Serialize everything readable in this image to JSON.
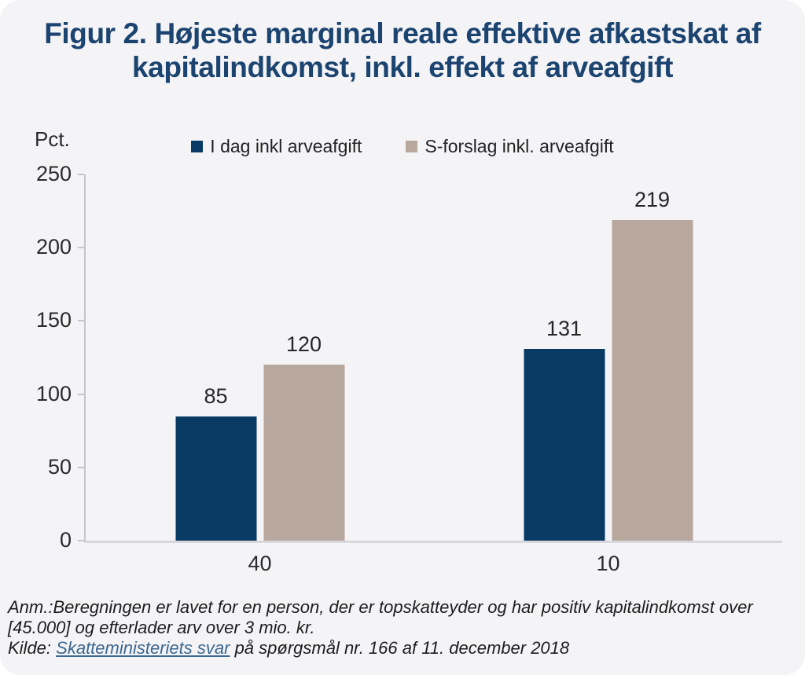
{
  "header": {
    "title_line1": "Figur 2. Højeste marginal reale effektive afkastskat af",
    "title_line2": "kapitalindkomst, inkl. effekt af arveafgift"
  },
  "colors": {
    "background": "#f4f3f6",
    "title_navy": "#1b4470",
    "bar_blue": "#083a63",
    "bar_tan": "#b8a79d",
    "axis_gray": "#c6c5cb",
    "link_blue": "#3c6790"
  },
  "chart_data": {
    "type": "bar",
    "title": "Figur 2. Højeste marginal reale effektive afkastskat af kapitalindkomst, inkl. effekt af arveafgift",
    "ylabel": "Pct.",
    "xlabel": "",
    "categories": [
      "40",
      "10"
    ],
    "series": [
      {
        "name": "I dag inkl arveafgift",
        "color": "#083a63",
        "values": [
          85,
          131
        ]
      },
      {
        "name": "S-forslag inkl. arveafgift",
        "color": "#b8a79d",
        "values": [
          120,
          219
        ]
      }
    ],
    "ylim": [
      0,
      250
    ],
    "yticks": [
      0,
      50,
      100,
      150,
      200,
      250
    ],
    "grid": false,
    "legend_position": "top-center",
    "bar_labels_shown": true
  },
  "footnote": {
    "line1": "Anm.:Beregningen er lavet for en person, der er topskatteyder og har positiv kapitalindkomst over",
    "line2": "[45.000] og efterlader arv over 3 mio. kr.",
    "source_prefix": "Kilde: ",
    "source_link": "Skatteministeriets svar",
    "source_suffix": " på spørgsmål nr. 166 af 11. december 2018"
  }
}
